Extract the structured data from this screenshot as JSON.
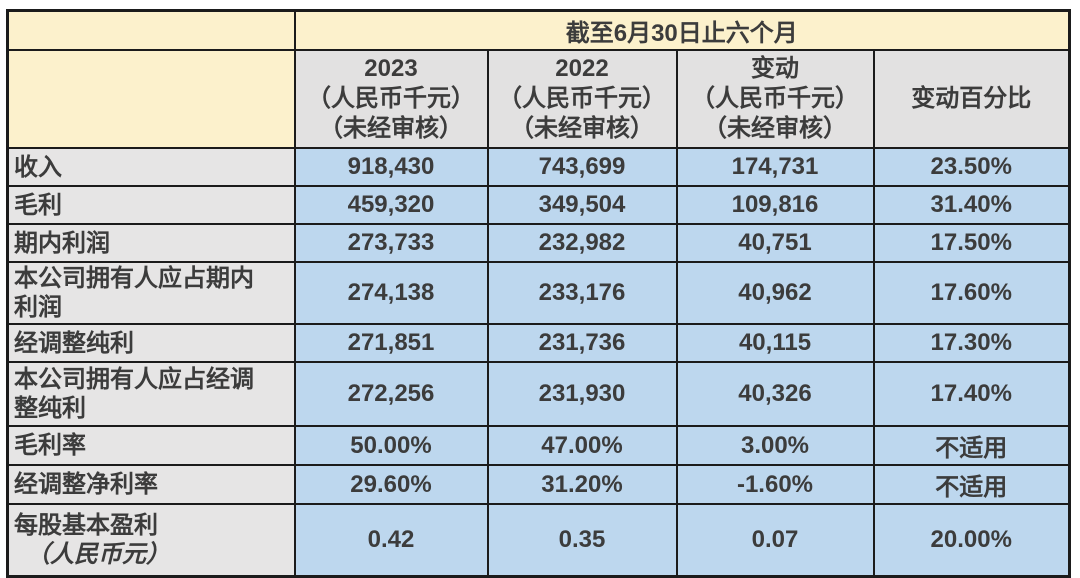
{
  "chart_data": {
    "type": "table",
    "period_header": "截至6月30日止六个月",
    "column_headers": [
      {
        "lines": [
          "2023",
          "（人民币千元）",
          "（未经审核）"
        ]
      },
      {
        "lines": [
          "2022",
          "（人民币千元）",
          "（未经审核）"
        ]
      },
      {
        "lines": [
          "变动",
          "（人民币千元）",
          "（未经审核）"
        ]
      },
      {
        "lines": [
          "变动百分比"
        ]
      }
    ],
    "rows": [
      {
        "label": "收入",
        "values": [
          "918,430",
          "743,699",
          "174,731",
          "23.50%"
        ]
      },
      {
        "label": "毛利",
        "values": [
          "459,320",
          "349,504",
          "109,816",
          "31.40%"
        ]
      },
      {
        "label": "期内利润",
        "values": [
          "273,733",
          "232,982",
          "40,751",
          "17.50%"
        ]
      },
      {
        "label": "本公司拥有人应占期内利润",
        "values": [
          "274,138",
          "233,176",
          "40,962",
          "17.60%"
        ]
      },
      {
        "label": "经调整纯利",
        "values": [
          "271,851",
          "231,736",
          "40,115",
          "17.30%"
        ]
      },
      {
        "label": "本公司拥有人应占经调整纯利",
        "values": [
          "272,256",
          "231,930",
          "40,326",
          "17.40%"
        ]
      },
      {
        "label": "毛利率",
        "values": [
          "50.00%",
          "47.00%",
          "3.00%",
          "不适用"
        ]
      },
      {
        "label": "经调整净利率",
        "values": [
          "29.60%",
          "31.20%",
          "-1.60%",
          "不适用"
        ]
      },
      {
        "label": "每股基本盈利",
        "label_note": "（人民币元）",
        "values": [
          "0.42",
          "0.35",
          "0.07",
          "20.00%"
        ]
      }
    ]
  },
  "colors": {
    "header_cream": "#FCF1CC",
    "column_header_gray": "#E2E1E1",
    "row_label_gray": "#E6E5E5",
    "data_cell_blue": "#BDD7EE",
    "border": "#1B1B1B",
    "text": "#3C3C3C"
  }
}
